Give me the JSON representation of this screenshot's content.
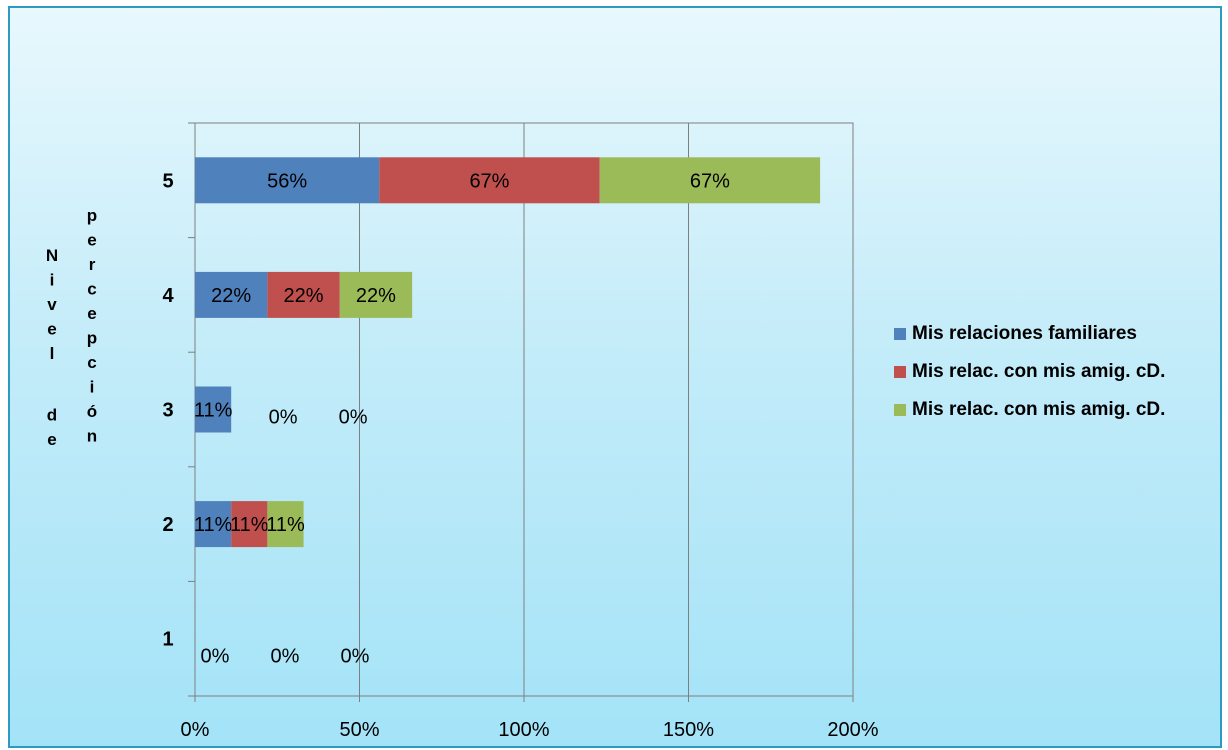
{
  "chart_data": {
    "type": "bar",
    "orientation": "horizontal",
    "stacked": true,
    "categories": [
      "1",
      "2",
      "3",
      "4",
      "5"
    ],
    "series": [
      {
        "name": "Mis relaciones familiares",
        "color": "#4f81bd",
        "values": [
          0,
          11,
          11,
          22,
          56
        ],
        "labels": [
          "0%",
          "11%",
          "11%",
          "22%",
          "56%"
        ]
      },
      {
        "name": "Mis relac. con mis amig. cD.",
        "color": "#c0504d",
        "values": [
          0,
          11,
          0,
          22,
          67
        ],
        "labels": [
          "0%",
          "11%",
          "0%",
          "22%",
          "67%"
        ]
      },
      {
        "name": "Mis relac. con mis amig. cD.",
        "color": "#9bbb59",
        "values": [
          0,
          11,
          0,
          22,
          67
        ],
        "labels": [
          "0%",
          "11%",
          "0%",
          "22%",
          "67%"
        ]
      }
    ],
    "xlim": [
      0,
      200
    ],
    "x_ticks": [
      "0%",
      "50%",
      "100%",
      "150%",
      "200%"
    ],
    "ylabel": "Nivel de percepción",
    "ylabel_lines": [
      "Nivel de",
      "percepción"
    ],
    "xlabel": "",
    "title": "",
    "grid": "vertical",
    "legend_position": "right"
  }
}
